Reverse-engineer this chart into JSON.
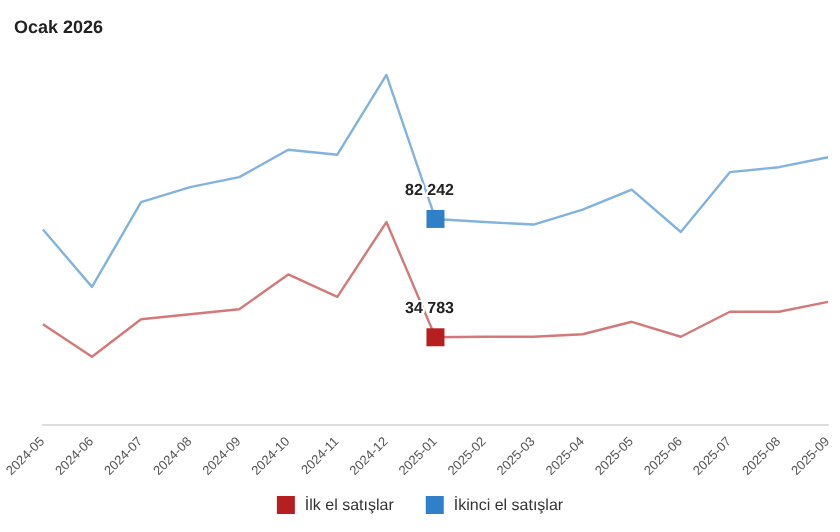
{
  "chart_data": {
    "type": "line",
    "title": "Ocak 2026",
    "categories": [
      "2024-05",
      "2024-06",
      "2024-07",
      "2024-08",
      "2024-09",
      "2024-10",
      "2024-11",
      "2024-12",
      "2025-01",
      "2025-02",
      "2025-03",
      "2025-04",
      "2025-05",
      "2025-06",
      "2025-07",
      "2025-08",
      "2025-09"
    ],
    "series": [
      {
        "name": "İlk el satışlar",
        "color": "#b51f1f",
        "values": [
          40000,
          27000,
          42000,
          44000,
          46000,
          60000,
          51000,
          81000,
          34783,
          35000,
          35000,
          36000,
          41000,
          35000,
          45000,
          45000,
          49000
        ],
        "value_labels": [
          null,
          null,
          null,
          null,
          null,
          null,
          null,
          null,
          "34 783",
          null,
          null,
          null,
          null,
          null,
          null,
          null,
          null
        ]
      },
      {
        "name": "İkinci el satışlar",
        "color": "#2f80c8",
        "values": [
          78000,
          55000,
          89000,
          95000,
          99000,
          110000,
          108000,
          140000,
          82242,
          81000,
          80000,
          86000,
          94000,
          77000,
          101000,
          103000,
          107000
        ],
        "value_labels": [
          null,
          null,
          null,
          null,
          null,
          null,
          null,
          null,
          "82 242",
          null,
          null,
          null,
          null,
          null,
          null,
          null,
          null
        ]
      }
    ],
    "tick_labels": "x",
    "legend": "bottom",
    "grid": false
  }
}
